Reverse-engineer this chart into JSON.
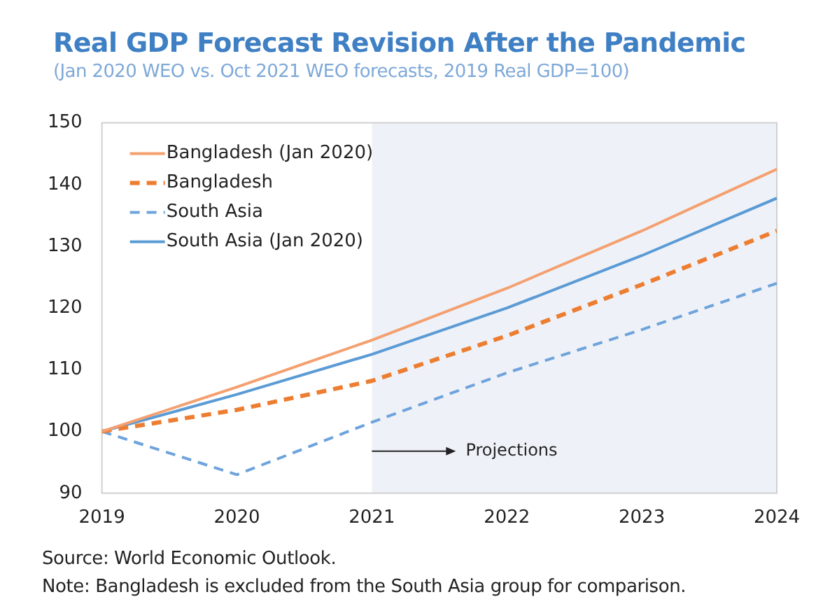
{
  "chart_data": {
    "type": "line",
    "title": "Real GDP Forecast Revision After the Pandemic",
    "subtitle": "(Jan 2020 WEO vs. Oct 2021 WEO forecasts, 2019 Real GDP=100)",
    "x": [
      2019,
      2020,
      2021,
      2022,
      2023,
      2024
    ],
    "series": [
      {
        "name": "Bangladesh (Jan 2020)",
        "color": "#f4a070",
        "values": [
          100,
          107.2,
          114.8,
          123.2,
          132.5,
          142.5
        ],
        "line_style": "solid"
      },
      {
        "name": "Bangladesh",
        "color": "#ed7d31",
        "values": [
          100,
          103.5,
          108.2,
          115.5,
          123.8,
          132.5
        ],
        "line_style": "dashed"
      },
      {
        "name": "South Asia",
        "color": "#6fa3dc",
        "values": [
          100,
          93,
          101.5,
          109.5,
          116.5,
          124
        ],
        "line_style": "dashed"
      },
      {
        "name": "South Asia (Jan 2020)",
        "color": "#5b9bd5",
        "values": [
          100,
          106,
          112.5,
          120,
          128.5,
          137.8
        ],
        "line_style": "solid"
      }
    ],
    "xlim": [
      2019,
      2024
    ],
    "xticks": [
      2019,
      2020,
      2021,
      2022,
      2023,
      2024
    ],
    "ylim": [
      90,
      150
    ],
    "yticks": [
      90,
      100,
      110,
      120,
      130,
      140,
      150
    ],
    "grid": false,
    "legend": "top left",
    "bands": [
      {
        "axis": "x",
        "from": 2021,
        "to": 2024,
        "label": "Projections",
        "color": "#eef2f8"
      }
    ],
    "annotations": [
      "Source: World Economic Outlook.",
      "Note: Bangladesh is excluded from the South Asia group for comparison."
    ]
  }
}
